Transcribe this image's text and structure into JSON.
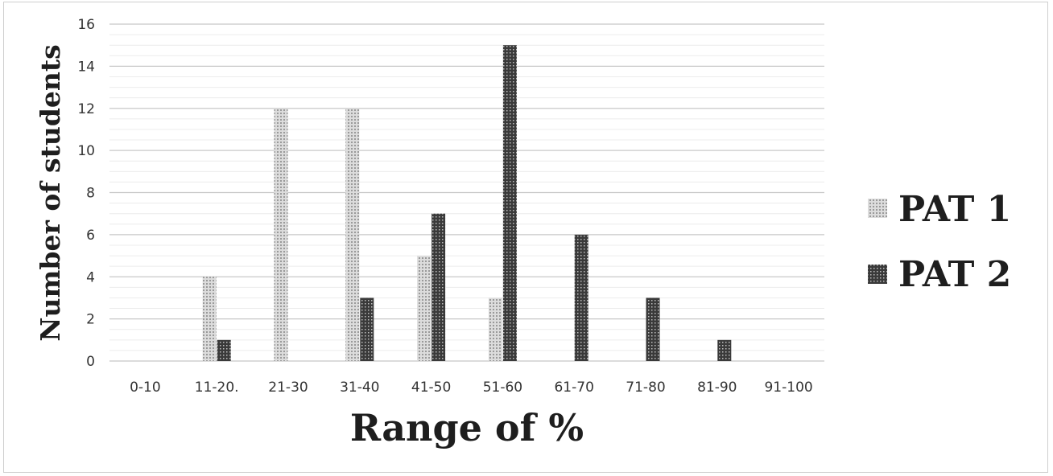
{
  "chart_data": {
    "type": "bar",
    "categories": [
      "0-10",
      "11-20.",
      "21-30",
      "31-40",
      "41-50",
      "51-60",
      "61-70",
      "71-80",
      "81-90",
      "91-100"
    ],
    "series": [
      {
        "name": "PAT 1",
        "values": [
          0,
          4,
          12,
          12,
          5,
          3,
          0,
          0,
          0,
          0
        ],
        "color": "#b8b8b8",
        "pattern": "light-dots"
      },
      {
        "name": "PAT 2",
        "values": [
          0,
          1,
          0,
          3,
          7,
          15,
          6,
          3,
          1,
          0
        ],
        "color": "#3a3a3a",
        "pattern": "dark-dots"
      }
    ],
    "xlabel": "Range of %",
    "ylabel": "Number of students",
    "ylim": [
      0,
      16
    ],
    "yticks": [
      "0",
      "2",
      "4",
      "6",
      "8",
      "10",
      "12",
      "14",
      "16"
    ],
    "grid": true,
    "legend_position": "right"
  }
}
